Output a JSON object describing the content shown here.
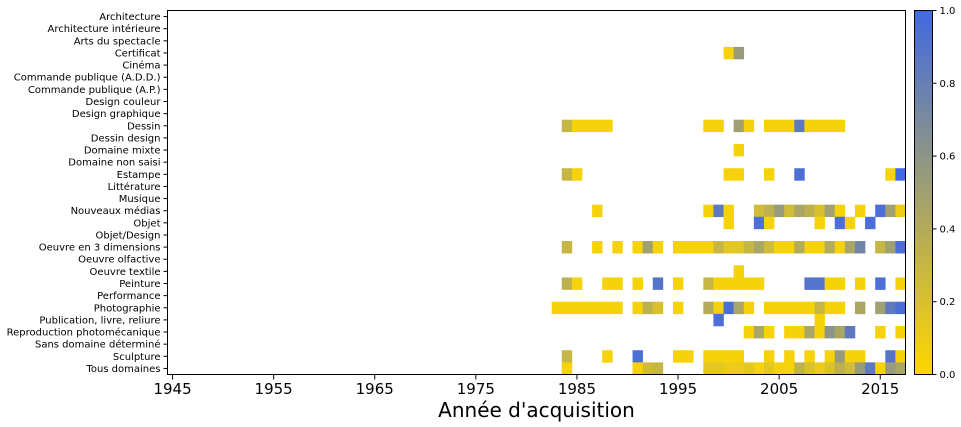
{
  "chart_data": {
    "type": "heatmap",
    "title": "",
    "xlabel": "Année d'acquisition",
    "ylabel": "",
    "x_ticks": [
      1945,
      1955,
      1965,
      1975,
      1985,
      1995,
      2005,
      2015
    ],
    "xlim": [
      1944.5,
      2017.5
    ],
    "categories": [
      "Architecture",
      "Architecture intérieure",
      "Arts du spectacle",
      "Certificat",
      "Cinéma",
      "Commande publique (A.D.D.)",
      "Commande publique (A.P.)",
      "Design couleur",
      "Design graphique",
      "Dessin",
      "Dessin design",
      "Domaine mixte",
      "Domaine non saisi",
      "Estampe",
      "Littérature",
      "Musique",
      "Nouveaux médias",
      "Objet",
      "Objet/Design",
      "Oeuvre en 3 dimensions",
      "Oeuvre olfactive",
      "Oeuvre textile",
      "Peinture",
      "Performance",
      "Photographie",
      "Publication, livre, reliure",
      "Reproduction photomécanique",
      "Sans domaine déterminé",
      "Sculpture",
      "Tous domaines"
    ],
    "colorbar": {
      "min": 0.0,
      "max": 1.0,
      "ticks": [
        "0.0",
        "0.2",
        "0.4",
        "0.6",
        "0.8",
        "1.0"
      ]
    },
    "colors": {
      "low": "#FFD700",
      "high": "#4169E1"
    },
    "cells": {
      "Certificat": [
        [
          2000,
          0.05
        ],
        [
          2001,
          0.55
        ]
      ],
      "Dessin": [
        [
          1984,
          0.3
        ],
        [
          1985,
          0.05
        ],
        [
          1986,
          0.05
        ],
        [
          1987,
          0.05
        ],
        [
          1988,
          0.05
        ],
        [
          1998,
          0.05
        ],
        [
          1999,
          0.05
        ],
        [
          2001,
          0.5
        ],
        [
          2002,
          0.05
        ],
        [
          2004,
          0.05
        ],
        [
          2005,
          0.05
        ],
        [
          2006,
          0.05
        ],
        [
          2007,
          0.85
        ],
        [
          2008,
          0.05
        ],
        [
          2009,
          0.05
        ],
        [
          2010,
          0.05
        ],
        [
          2011,
          0.05
        ]
      ],
      "Domaine mixte": [
        [
          2001,
          0.05
        ]
      ],
      "Estampe": [
        [
          1984,
          0.3
        ],
        [
          1985,
          0.05
        ],
        [
          2000,
          0.05
        ],
        [
          2001,
          0.05
        ],
        [
          2004,
          0.05
        ],
        [
          2007,
          0.95
        ],
        [
          2016,
          0.05
        ],
        [
          2017,
          1.0
        ]
      ],
      "Nouveaux médias": [
        [
          1987,
          0.05
        ],
        [
          1998,
          0.05
        ],
        [
          1999,
          0.85
        ],
        [
          2000,
          0.05
        ],
        [
          2003,
          0.25
        ],
        [
          2004,
          0.35
        ],
        [
          2005,
          0.55
        ],
        [
          2006,
          0.25
        ],
        [
          2007,
          0.45
        ],
        [
          2008,
          0.35
        ],
        [
          2009,
          0.2
        ],
        [
          2010,
          0.5
        ],
        [
          2011,
          0.05
        ],
        [
          2013,
          0.05
        ],
        [
          2015,
          0.95
        ],
        [
          2016,
          0.5
        ],
        [
          2017,
          0.1
        ]
      ],
      "Objet": [
        [
          2000,
          0.05
        ],
        [
          2003,
          0.95
        ],
        [
          2004,
          0.05
        ],
        [
          2009,
          0.05
        ],
        [
          2011,
          0.95
        ],
        [
          2012,
          0.05
        ],
        [
          2014,
          0.95
        ]
      ],
      "Oeuvre en 3 dimensions": [
        [
          1984,
          0.3
        ],
        [
          1987,
          0.05
        ],
        [
          1989,
          0.05
        ],
        [
          1991,
          0.05
        ],
        [
          1992,
          0.5
        ],
        [
          1993,
          0.05
        ],
        [
          1995,
          0.05
        ],
        [
          1996,
          0.05
        ],
        [
          1997,
          0.05
        ],
        [
          1998,
          0.05
        ],
        [
          1999,
          0.3
        ],
        [
          2000,
          0.15
        ],
        [
          2001,
          0.15
        ],
        [
          2002,
          0.3
        ],
        [
          2003,
          0.45
        ],
        [
          2004,
          0.25
        ],
        [
          2005,
          0.05
        ],
        [
          2006,
          0.05
        ],
        [
          2007,
          0.4
        ],
        [
          2008,
          0.05
        ],
        [
          2009,
          0.05
        ],
        [
          2010,
          0.4
        ],
        [
          2011,
          0.05
        ],
        [
          2012,
          0.45
        ],
        [
          2013,
          0.75
        ],
        [
          2015,
          0.3
        ],
        [
          2016,
          0.5
        ],
        [
          2017,
          0.95
        ]
      ],
      "Oeuvre textile": [
        [
          2001,
          0.05
        ]
      ],
      "Peinture": [
        [
          1984,
          0.35
        ],
        [
          1985,
          0.05
        ],
        [
          1988,
          0.05
        ],
        [
          1989,
          0.05
        ],
        [
          1991,
          0.05
        ],
        [
          1993,
          0.9
        ],
        [
          1995,
          0.05
        ],
        [
          1998,
          0.3
        ],
        [
          1999,
          0.05
        ],
        [
          2000,
          0.05
        ],
        [
          2001,
          0.05
        ],
        [
          2002,
          0.05
        ],
        [
          2003,
          0.05
        ],
        [
          2008,
          0.9
        ],
        [
          2009,
          0.9
        ],
        [
          2010,
          0.05
        ],
        [
          2011,
          0.05
        ],
        [
          2013,
          0.05
        ],
        [
          2015,
          0.95
        ],
        [
          2017,
          0.05
        ]
      ],
      "Photographie": [
        [
          1983,
          0.05
        ],
        [
          1984,
          0.05
        ],
        [
          1985,
          0.05
        ],
        [
          1986,
          0.05
        ],
        [
          1987,
          0.05
        ],
        [
          1988,
          0.05
        ],
        [
          1989,
          0.05
        ],
        [
          1991,
          0.05
        ],
        [
          1992,
          0.35
        ],
        [
          1993,
          0.2
        ],
        [
          1995,
          0.05
        ],
        [
          1998,
          0.4
        ],
        [
          1999,
          0.05
        ],
        [
          2000,
          0.95
        ],
        [
          2001,
          0.45
        ],
        [
          2002,
          0.05
        ],
        [
          2004,
          0.05
        ],
        [
          2005,
          0.05
        ],
        [
          2006,
          0.05
        ],
        [
          2007,
          0.05
        ],
        [
          2008,
          0.05
        ],
        [
          2009,
          0.3
        ],
        [
          2010,
          0.05
        ],
        [
          2011,
          0.05
        ],
        [
          2013,
          0.45
        ],
        [
          2015,
          0.5
        ],
        [
          2016,
          0.85
        ],
        [
          2017,
          0.95
        ]
      ],
      "Publication, livre, reliure": [
        [
          1999,
          0.95
        ],
        [
          2009,
          0.05
        ]
      ],
      "Reproduction photomécanique": [
        [
          2002,
          0.05
        ],
        [
          2003,
          0.45
        ],
        [
          2004,
          0.05
        ],
        [
          2006,
          0.05
        ],
        [
          2007,
          0.05
        ],
        [
          2008,
          0.45
        ],
        [
          2009,
          0.05
        ],
        [
          2010,
          0.6
        ],
        [
          2011,
          0.45
        ],
        [
          2012,
          0.85
        ],
        [
          2015,
          0.05
        ],
        [
          2017,
          0.05
        ]
      ],
      "Sculpture": [
        [
          1984,
          0.3
        ],
        [
          1988,
          0.05
        ],
        [
          1991,
          0.95
        ],
        [
          1995,
          0.05
        ],
        [
          1996,
          0.05
        ],
        [
          1998,
          0.05
        ],
        [
          1999,
          0.05
        ],
        [
          2000,
          0.05
        ],
        [
          2001,
          0.05
        ],
        [
          2004,
          0.05
        ],
        [
          2006,
          0.05
        ],
        [
          2008,
          0.05
        ],
        [
          2010,
          0.05
        ],
        [
          2011,
          0.55
        ],
        [
          2012,
          0.05
        ],
        [
          2013,
          0.05
        ],
        [
          2016,
          0.9
        ],
        [
          2017,
          0.05
        ]
      ],
      "Tous domaines": [
        [
          1984,
          0.05
        ],
        [
          1991,
          0.05
        ],
        [
          1992,
          0.25
        ],
        [
          1993,
          0.3
        ],
        [
          1998,
          0.15
        ],
        [
          1999,
          0.15
        ],
        [
          2000,
          0.1
        ],
        [
          2001,
          0.1
        ],
        [
          2002,
          0.15
        ],
        [
          2003,
          0.05
        ],
        [
          2004,
          0.15
        ],
        [
          2005,
          0.05
        ],
        [
          2006,
          0.05
        ],
        [
          2007,
          0.35
        ],
        [
          2008,
          0.2
        ],
        [
          2009,
          0.1
        ],
        [
          2010,
          0.2
        ],
        [
          2011,
          0.35
        ],
        [
          2012,
          0.25
        ],
        [
          2013,
          0.55
        ],
        [
          2014,
          0.85
        ],
        [
          2015,
          0.05
        ],
        [
          2016,
          0.55
        ],
        [
          2017,
          0.45
        ]
      ]
    }
  }
}
